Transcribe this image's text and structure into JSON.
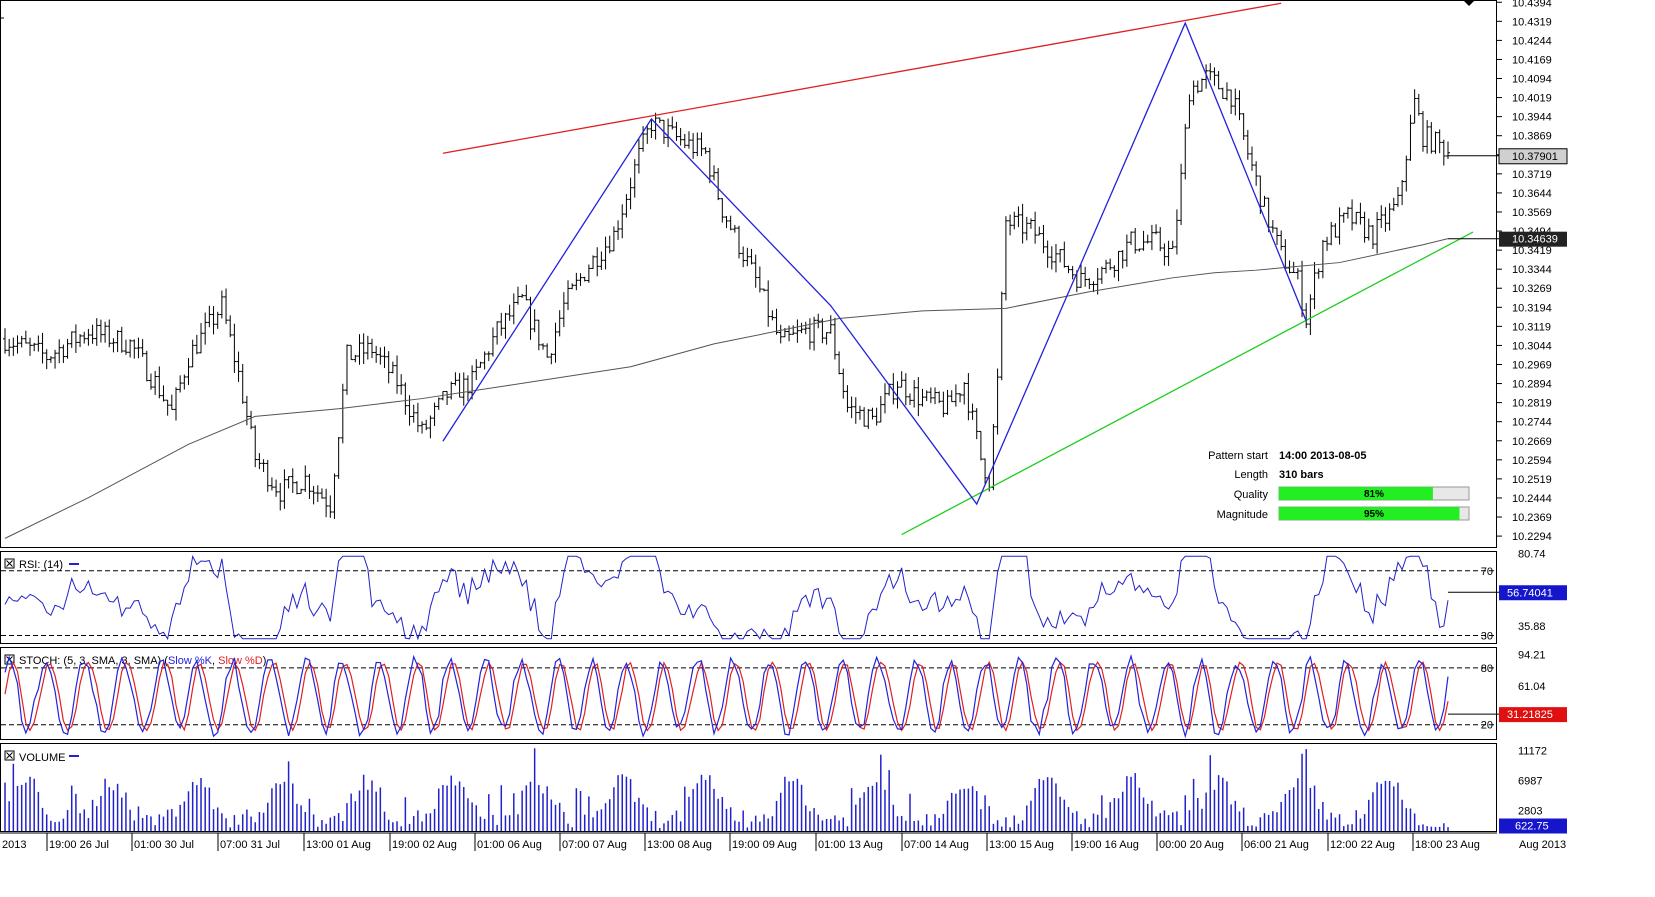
{
  "chart_data": {
    "type": "candlestick",
    "price_panel": {
      "y_axis_ticks": [
        "10.4394",
        "10.4319",
        "10.4244",
        "10.4169",
        "10.4094",
        "10.4019",
        "10.3944",
        "10.3869",
        "10.3794",
        "10.3719",
        "10.3644",
        "10.3569",
        "10.3494",
        "10.3419",
        "10.3344",
        "10.3269",
        "10.3194",
        "10.3119",
        "10.3044",
        "10.2969",
        "10.2894",
        "10.2819",
        "10.2744",
        "10.2669",
        "10.2594",
        "10.2519",
        "10.2444",
        "10.2369",
        "10.2294"
      ],
      "ylim": [
        10.2255,
        10.4395
      ],
      "current_price": "10.37901",
      "ma_price": "10.34639",
      "price_path": [
        [
          0,
          10.307
        ],
        [
          10,
          10.3
        ],
        [
          20,
          10.31
        ],
        [
          30,
          10.305
        ],
        [
          36,
          10.29
        ],
        [
          40,
          10.278
        ],
        [
          44,
          10.3
        ],
        [
          52,
          10.32
        ],
        [
          56,
          10.293
        ],
        [
          60,
          10.26
        ],
        [
          66,
          10.247
        ],
        [
          72,
          10.252
        ],
        [
          78,
          10.242
        ],
        [
          82,
          10.3
        ],
        [
          88,
          10.303
        ],
        [
          94,
          10.29
        ],
        [
          100,
          10.27
        ],
        [
          106,
          10.285
        ],
        [
          112,
          10.29
        ],
        [
          118,
          10.31
        ],
        [
          124,
          10.322
        ],
        [
          130,
          10.3
        ],
        [
          134,
          10.32
        ],
        [
          140,
          10.336
        ],
        [
          146,
          10.348
        ],
        [
          152,
          10.379
        ],
        [
          155,
          10.392
        ],
        [
          162,
          10.385
        ],
        [
          168,
          10.38
        ],
        [
          172,
          10.358
        ],
        [
          180,
          10.33
        ],
        [
          186,
          10.305
        ],
        [
          192,
          10.31
        ],
        [
          198,
          10.31
        ],
        [
          202,
          10.28
        ],
        [
          208,
          10.275
        ],
        [
          214,
          10.29
        ],
        [
          220,
          10.283
        ],
        [
          226,
          10.28
        ],
        [
          230,
          10.29
        ],
        [
          234,
          10.26
        ],
        [
          236,
          10.252
        ],
        [
          238,
          10.29
        ],
        [
          240,
          10.353
        ],
        [
          246,
          10.35
        ],
        [
          252,
          10.34
        ],
        [
          258,
          10.33
        ],
        [
          264,
          10.335
        ],
        [
          270,
          10.345
        ],
        [
          276,
          10.345
        ],
        [
          280,
          10.34
        ],
        [
          282,
          10.37
        ],
        [
          284,
          10.405
        ],
        [
          288,
          10.41
        ],
        [
          294,
          10.403
        ],
        [
          298,
          10.38
        ],
        [
          302,
          10.358
        ],
        [
          306,
          10.34
        ],
        [
          310,
          10.33
        ],
        [
          312,
          10.315
        ],
        [
          316,
          10.345
        ],
        [
          322,
          10.355
        ],
        [
          328,
          10.348
        ],
        [
          334,
          10.36
        ],
        [
          338,
          10.4
        ],
        [
          340,
          10.387
        ],
        [
          346,
          10.381
        ]
      ],
      "moving_average": [
        [
          0,
          10.2285
        ],
        [
          20,
          10.2445
        ],
        [
          44,
          10.2655
        ],
        [
          60,
          10.2765
        ],
        [
          80,
          10.2795
        ],
        [
          100,
          10.2835
        ],
        [
          120,
          10.2885
        ],
        [
          150,
          10.296
        ],
        [
          170,
          10.305
        ],
        [
          200,
          10.315
        ],
        [
          220,
          10.318
        ],
        [
          240,
          10.319
        ],
        [
          260,
          10.3255
        ],
        [
          280,
          10.331
        ],
        [
          290,
          10.333
        ],
        [
          300,
          10.334
        ],
        [
          320,
          10.337
        ],
        [
          340,
          10.344
        ],
        [
          346,
          10.3464
        ]
      ],
      "pattern_line": [
        [
          105,
          10.2667
        ],
        [
          155,
          10.3935
        ],
        [
          198,
          10.32
        ],
        [
          233,
          10.242
        ],
        [
          283,
          10.4312
        ],
        [
          312,
          10.314
        ]
      ],
      "resistance_line": [
        [
          105,
          10.38
        ],
        [
          306,
          10.439
        ]
      ],
      "support_line": [
        [
          215,
          10.23
        ],
        [
          352,
          10.349
        ]
      ],
      "info": {
        "pattern_start_label": "Pattern start",
        "pattern_start_value": "14:00 2013-08-05",
        "length_label": "Length",
        "length_value": "310 bars",
        "quality_label": "Quality",
        "quality_percent": 81,
        "magnitude_label": "Magnitude",
        "magnitude_percent": 95
      }
    },
    "rsi_panel": {
      "title": "RSI: (14)",
      "axis_ticks": [
        "80.74",
        "35.88"
      ],
      "level_labels": [
        "70",
        "30"
      ],
      "levels": [
        70,
        30
      ],
      "ylim": [
        26,
        81
      ],
      "current_value": "56.74041"
    },
    "stoch_panel": {
      "title": "STOCH: (5, 3, SMA, 3, SMA)",
      "k_label": "Slow %K",
      "d_label": "Slow %D",
      "axis_ticks": [
        "94.21",
        "61.04"
      ],
      "level_labels": [
        "80",
        "20"
      ],
      "levels": [
        80,
        20
      ],
      "ylim": [
        6,
        100
      ],
      "current_value": "31.21825"
    },
    "volume_panel": {
      "title": "VOLUME",
      "axis_ticks": [
        "11172",
        "6987",
        "2803"
      ],
      "ylim": [
        0,
        11900
      ],
      "current_value": "622.75"
    },
    "x_axis_labels": [
      "2013",
      "19:00 26 Jul",
      "01:00 30 Jul",
      "07:00 31 Jul",
      "13:00 01 Aug",
      "19:00 02 Aug",
      "01:00 06 Aug",
      "07:00 07 Aug",
      "13:00 08 Aug",
      "19:00 09 Aug",
      "01:00 13 Aug",
      "07:00 14 Aug",
      "13:00 15 Aug",
      "19:00 16 Aug",
      "00:00 20 Aug",
      "06:00 21 Aug",
      "12:00 22 Aug",
      "18:00 23 Aug",
      "Aug 2013"
    ],
    "bar_count": 347
  },
  "colors": {
    "candle": "#000000",
    "moving_average": "#555555",
    "pattern_line": "#2222dd",
    "resistance_line": "#e02020",
    "support_line": "#22cc22",
    "rsi_line": "#2222cc",
    "stoch_k": "#2222dd",
    "stoch_d": "#e02020",
    "volume_bars": "#2222cc",
    "bar_fill": "#22ee22",
    "dark_label_bg": "#222222",
    "stoch_label_bg": "#e01010",
    "volume_label_bg": "#1515cc"
  }
}
